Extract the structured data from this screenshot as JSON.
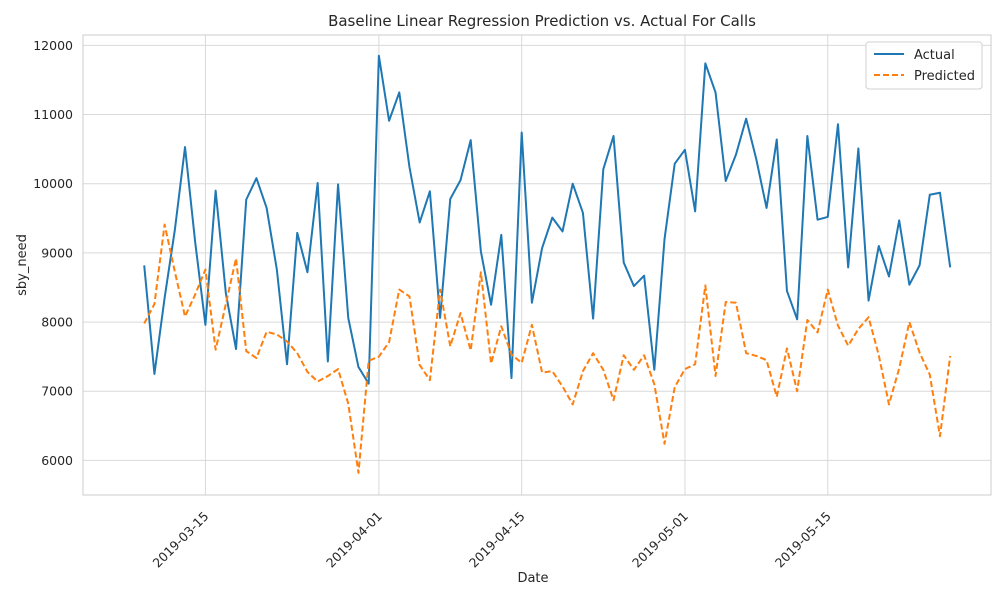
{
  "chart_data": {
    "type": "line",
    "title": "Baseline Linear Regression Prediction vs. Actual For Calls",
    "xlabel": "Date",
    "ylabel": "sby_need",
    "x_start": "2019-03-09",
    "x_ticks": [
      "2019-03-15",
      "2019-04-01",
      "2019-04-15",
      "2019-05-01",
      "2019-05-15"
    ],
    "y_ticks": [
      6000,
      7000,
      8000,
      9000,
      10000,
      11000,
      12000
    ],
    "xlim": [
      "2019-03-03",
      "2019-05-31"
    ],
    "ylim": [
      5500,
      12150
    ],
    "grid": true,
    "legend_position": "top-right",
    "series": [
      {
        "name": "Actual",
        "color": "#1f77b4",
        "style": "solid",
        "values": [
          8820,
          7250,
          8350,
          9330,
          10530,
          9150,
          7960,
          9900,
          8420,
          7610,
          9770,
          10080,
          9650,
          8760,
          7390,
          9290,
          8720,
          10010,
          7430,
          9990,
          8060,
          7350,
          7110,
          11850,
          10910,
          11320,
          10240,
          9440,
          9890,
          8060,
          9780,
          10050,
          10630,
          9020,
          8250,
          9260,
          7190,
          10740,
          8280,
          9070,
          9510,
          9310,
          10000,
          9580,
          8050,
          10210,
          10690,
          8860,
          8520,
          8670,
          7310,
          9200,
          10290,
          10490,
          9600,
          11740,
          11320,
          10040,
          10420,
          10940,
          10350,
          9650,
          10640,
          8450,
          8040,
          10690,
          9480,
          9520,
          10860,
          8790,
          10510,
          8310,
          9100,
          8660,
          9470,
          8540,
          8820,
          9840,
          9870,
          8790
        ]
      },
      {
        "name": "Predicted",
        "color": "#ff7f0e",
        "style": "dashed",
        "values": [
          7980,
          8260,
          9410,
          8730,
          8080,
          8400,
          8760,
          7600,
          8260,
          8920,
          7580,
          7480,
          7860,
          7820,
          7720,
          7550,
          7280,
          7140,
          7220,
          7320,
          6820,
          5820,
          7440,
          7500,
          7710,
          8470,
          8370,
          7380,
          7160,
          8470,
          7650,
          8130,
          7590,
          8720,
          7400,
          7940,
          7530,
          7410,
          7960,
          7270,
          7290,
          7070,
          6810,
          7290,
          7550,
          7310,
          6870,
          7520,
          7310,
          7520,
          7100,
          6240,
          7060,
          7320,
          7390,
          8530,
          7220,
          8290,
          8280,
          7550,
          7510,
          7450,
          6920,
          7620,
          7000,
          8030,
          7850,
          8470,
          7950,
          7660,
          7900,
          8070,
          7520,
          6810,
          7330,
          8000,
          7560,
          7240,
          6350,
          7510
        ]
      }
    ]
  }
}
